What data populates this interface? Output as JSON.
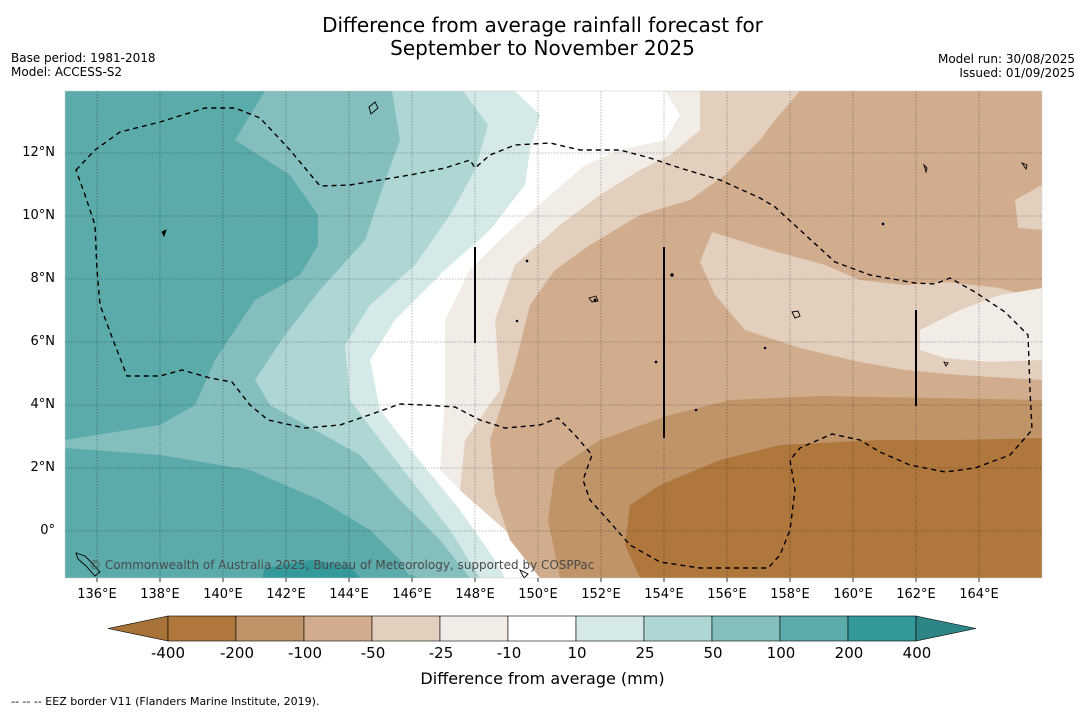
{
  "title_line1": "Difference from average rainfall forecast for",
  "title_line2": "September to November 2025",
  "meta_left": {
    "base_period": "Base period: 1981-2018",
    "model": "Model: ACCESS-S2"
  },
  "meta_right": {
    "model_run": "Model run: 30/08/2025",
    "issued": "Issued: 01/09/2025"
  },
  "lat_labels": [
    "12°N",
    "10°N",
    "8°N",
    "6°N",
    "4°N",
    "2°N",
    "0°"
  ],
  "lon_labels": [
    "136°E",
    "138°E",
    "140°E",
    "142°E",
    "144°E",
    "146°E",
    "148°E",
    "150°E",
    "152°E",
    "154°E",
    "156°E",
    "158°E",
    "160°E",
    "162°E",
    "164°E"
  ],
  "copyright": "© Commonwealth of Australia 2025, Bureau of Meteorology, supported by COSPPac",
  "colorbar": {
    "labels": [
      "-400",
      "-200",
      "-100",
      "-50",
      "-25",
      "-10",
      "10",
      "25",
      "50",
      "100",
      "200",
      "400"
    ],
    "colors": [
      "#a87339",
      "#af773c",
      "#bf9468",
      "#d1ad8d",
      "#e3cfbd",
      "#f2ece6",
      "#ffffff",
      "#d5e9e8",
      "#aed6d5",
      "#84bfbe",
      "#5aabaa",
      "#34999a",
      "#2e8585"
    ],
    "title": "Difference from average (mm)"
  },
  "footnote": "--  --  -- EEZ border V11 (Flanders Marine Institute, 2019)."
}
